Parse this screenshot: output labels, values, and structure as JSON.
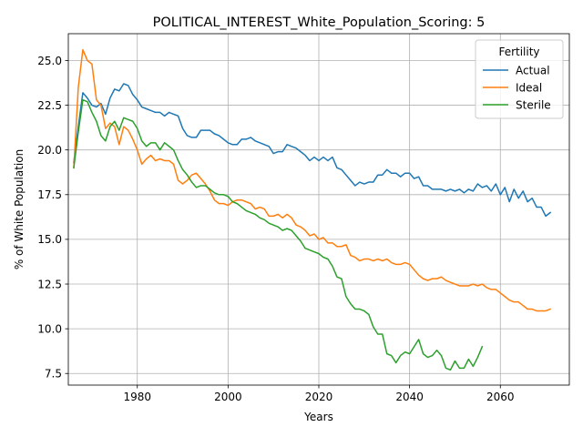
{
  "chart_data": {
    "type": "line",
    "title": "POLITICAL_INTEREST_White_Population_Scoring: 5",
    "xlabel": "Years",
    "ylabel": "% of White Population",
    "xlim": [
      1964.8,
      2075.2
    ],
    "ylim": [
      6.85,
      26.5
    ],
    "xticks": [
      1980,
      2000,
      2020,
      2040,
      2060
    ],
    "yticks": [
      7.5,
      10.0,
      12.5,
      15.0,
      17.5,
      20.0,
      22.5,
      25.0
    ],
    "ytick_labels": [
      "7.5",
      "10.0",
      "12.5",
      "15.0",
      "17.5",
      "20.0",
      "22.5",
      "25.0"
    ],
    "grid": true,
    "legend": {
      "title": "Fertility",
      "placement": "top-right"
    },
    "series": [
      {
        "name": "Actual",
        "color": "#1f77b4",
        "points": [
          [
            1966,
            19.3
          ],
          [
            1967,
            21.3
          ],
          [
            1968,
            23.2
          ],
          [
            1969,
            22.9
          ],
          [
            1970,
            22.5
          ],
          [
            1971,
            22.4
          ],
          [
            1972,
            22.6
          ],
          [
            1973,
            22.0
          ],
          [
            1974,
            22.9
          ],
          [
            1975,
            23.4
          ],
          [
            1976,
            23.3
          ],
          [
            1977,
            23.7
          ],
          [
            1978,
            23.6
          ],
          [
            1979,
            23.1
          ],
          [
            1980,
            22.8
          ],
          [
            1981,
            22.4
          ],
          [
            1982,
            22.3
          ],
          [
            1983,
            22.2
          ],
          [
            1984,
            22.1
          ],
          [
            1985,
            22.1
          ],
          [
            1986,
            21.9
          ],
          [
            1987,
            22.1
          ],
          [
            1988,
            22.0
          ],
          [
            1989,
            21.9
          ],
          [
            1990,
            21.2
          ],
          [
            1991,
            20.8
          ],
          [
            1992,
            20.7
          ],
          [
            1993,
            20.7
          ],
          [
            1994,
            21.1
          ],
          [
            1995,
            21.1
          ],
          [
            1996,
            21.1
          ],
          [
            1997,
            20.9
          ],
          [
            1998,
            20.8
          ],
          [
            1999,
            20.6
          ],
          [
            2000,
            20.4
          ],
          [
            2001,
            20.3
          ],
          [
            2002,
            20.3
          ],
          [
            2003,
            20.6
          ],
          [
            2004,
            20.6
          ],
          [
            2005,
            20.7
          ],
          [
            2006,
            20.5
          ],
          [
            2007,
            20.4
          ],
          [
            2008,
            20.3
          ],
          [
            2009,
            20.2
          ],
          [
            2010,
            19.8
          ],
          [
            2011,
            19.9
          ],
          [
            2012,
            19.9
          ],
          [
            2013,
            20.3
          ],
          [
            2014,
            20.2
          ],
          [
            2015,
            20.1
          ],
          [
            2016,
            19.9
          ],
          [
            2017,
            19.7
          ],
          [
            2018,
            19.4
          ],
          [
            2019,
            19.6
          ],
          [
            2020,
            19.4
          ],
          [
            2021,
            19.6
          ],
          [
            2022,
            19.4
          ],
          [
            2023,
            19.6
          ],
          [
            2024,
            19.0
          ],
          [
            2025,
            18.9
          ],
          [
            2026,
            18.6
          ],
          [
            2027,
            18.3
          ],
          [
            2028,
            18.0
          ],
          [
            2029,
            18.2
          ],
          [
            2030,
            18.1
          ],
          [
            2031,
            18.2
          ],
          [
            2032,
            18.2
          ],
          [
            2033,
            18.6
          ],
          [
            2034,
            18.6
          ],
          [
            2035,
            18.9
          ],
          [
            2036,
            18.7
          ],
          [
            2037,
            18.7
          ],
          [
            2038,
            18.5
          ],
          [
            2039,
            18.7
          ],
          [
            2040,
            18.7
          ],
          [
            2041,
            18.4
          ],
          [
            2042,
            18.5
          ],
          [
            2043,
            18.0
          ],
          [
            2044,
            18.0
          ],
          [
            2045,
            17.8
          ],
          [
            2046,
            17.8
          ],
          [
            2047,
            17.8
          ],
          [
            2048,
            17.7
          ],
          [
            2049,
            17.8
          ],
          [
            2050,
            17.7
          ],
          [
            2051,
            17.8
          ],
          [
            2052,
            17.6
          ],
          [
            2053,
            17.8
          ],
          [
            2054,
            17.7
          ],
          [
            2055,
            18.1
          ],
          [
            2056,
            17.9
          ],
          [
            2057,
            18.0
          ],
          [
            2058,
            17.7
          ],
          [
            2059,
            18.1
          ],
          [
            2060,
            17.5
          ],
          [
            2061,
            17.9
          ],
          [
            2062,
            17.1
          ],
          [
            2063,
            17.8
          ],
          [
            2064,
            17.3
          ],
          [
            2065,
            17.7
          ],
          [
            2066,
            17.1
          ],
          [
            2067,
            17.3
          ],
          [
            2068,
            16.8
          ],
          [
            2069,
            16.8
          ],
          [
            2070,
            16.3
          ],
          [
            2071,
            16.5
          ]
        ]
      },
      {
        "name": "Ideal",
        "color": "#ff7f0e",
        "points": [
          [
            1966,
            19.0
          ],
          [
            1967,
            23.5
          ],
          [
            1968,
            25.6
          ],
          [
            1969,
            25.0
          ],
          [
            1970,
            24.8
          ],
          [
            1971,
            22.8
          ],
          [
            1972,
            22.5
          ],
          [
            1973,
            21.2
          ],
          [
            1974,
            21.5
          ],
          [
            1975,
            21.3
          ],
          [
            1976,
            20.3
          ],
          [
            1977,
            21.3
          ],
          [
            1978,
            21.1
          ],
          [
            1979,
            20.6
          ],
          [
            1980,
            20.0
          ],
          [
            1981,
            19.2
          ],
          [
            1982,
            19.5
          ],
          [
            1983,
            19.7
          ],
          [
            1984,
            19.4
          ],
          [
            1985,
            19.5
          ],
          [
            1986,
            19.4
          ],
          [
            1987,
            19.4
          ],
          [
            1988,
            19.2
          ],
          [
            1989,
            18.3
          ],
          [
            1990,
            18.1
          ],
          [
            1991,
            18.3
          ],
          [
            1992,
            18.6
          ],
          [
            1993,
            18.7
          ],
          [
            1994,
            18.4
          ],
          [
            1995,
            18.1
          ],
          [
            1996,
            17.7
          ],
          [
            1997,
            17.2
          ],
          [
            1998,
            17.0
          ],
          [
            1999,
            17.0
          ],
          [
            2000,
            16.9
          ],
          [
            2001,
            17.1
          ],
          [
            2002,
            17.2
          ],
          [
            2003,
            17.2
          ],
          [
            2004,
            17.1
          ],
          [
            2005,
            17.0
          ],
          [
            2006,
            16.7
          ],
          [
            2007,
            16.8
          ],
          [
            2008,
            16.7
          ],
          [
            2009,
            16.3
          ],
          [
            2010,
            16.3
          ],
          [
            2011,
            16.4
          ],
          [
            2012,
            16.2
          ],
          [
            2013,
            16.4
          ],
          [
            2014,
            16.2
          ],
          [
            2015,
            15.8
          ],
          [
            2016,
            15.7
          ],
          [
            2017,
            15.5
          ],
          [
            2018,
            15.2
          ],
          [
            2019,
            15.3
          ],
          [
            2020,
            15.0
          ],
          [
            2021,
            15.1
          ],
          [
            2022,
            14.8
          ],
          [
            2023,
            14.8
          ],
          [
            2024,
            14.6
          ],
          [
            2025,
            14.6
          ],
          [
            2026,
            14.7
          ],
          [
            2027,
            14.1
          ],
          [
            2028,
            14.0
          ],
          [
            2029,
            13.8
          ],
          [
            2030,
            13.9
          ],
          [
            2031,
            13.9
          ],
          [
            2032,
            13.8
          ],
          [
            2033,
            13.9
          ],
          [
            2034,
            13.8
          ],
          [
            2035,
            13.9
          ],
          [
            2036,
            13.7
          ],
          [
            2037,
            13.6
          ],
          [
            2038,
            13.6
          ],
          [
            2039,
            13.7
          ],
          [
            2040,
            13.6
          ],
          [
            2041,
            13.3
          ],
          [
            2042,
            13.0
          ],
          [
            2043,
            12.8
          ],
          [
            2044,
            12.7
          ],
          [
            2045,
            12.8
          ],
          [
            2046,
            12.8
          ],
          [
            2047,
            12.9
          ],
          [
            2048,
            12.7
          ],
          [
            2049,
            12.6
          ],
          [
            2050,
            12.5
          ],
          [
            2051,
            12.4
          ],
          [
            2052,
            12.4
          ],
          [
            2053,
            12.4
          ],
          [
            2054,
            12.5
          ],
          [
            2055,
            12.4
          ],
          [
            2056,
            12.5
          ],
          [
            2057,
            12.3
          ],
          [
            2058,
            12.2
          ],
          [
            2059,
            12.2
          ],
          [
            2060,
            12.0
          ],
          [
            2061,
            11.8
          ],
          [
            2062,
            11.6
          ],
          [
            2063,
            11.5
          ],
          [
            2064,
            11.5
          ],
          [
            2065,
            11.3
          ],
          [
            2066,
            11.1
          ],
          [
            2067,
            11.1
          ],
          [
            2068,
            11.0
          ],
          [
            2069,
            11.0
          ],
          [
            2070,
            11.0
          ],
          [
            2071,
            11.1
          ]
        ]
      },
      {
        "name": "Sterile",
        "color": "#2ca02c",
        "points": [
          [
            1966,
            19.0
          ],
          [
            1967,
            21.0
          ],
          [
            1968,
            22.8
          ],
          [
            1969,
            22.7
          ],
          [
            1970,
            22.1
          ],
          [
            1971,
            21.6
          ],
          [
            1972,
            20.8
          ],
          [
            1973,
            20.5
          ],
          [
            1974,
            21.3
          ],
          [
            1975,
            21.6
          ],
          [
            1976,
            21.1
          ],
          [
            1977,
            21.8
          ],
          [
            1978,
            21.7
          ],
          [
            1979,
            21.6
          ],
          [
            1980,
            21.2
          ],
          [
            1981,
            20.5
          ],
          [
            1982,
            20.2
          ],
          [
            1983,
            20.4
          ],
          [
            1984,
            20.4
          ],
          [
            1985,
            20.0
          ],
          [
            1986,
            20.4
          ],
          [
            1987,
            20.2
          ],
          [
            1988,
            20.0
          ],
          [
            1989,
            19.4
          ],
          [
            1990,
            18.9
          ],
          [
            1991,
            18.6
          ],
          [
            1992,
            18.2
          ],
          [
            1993,
            17.9
          ],
          [
            1994,
            18.0
          ],
          [
            1995,
            18.0
          ],
          [
            1996,
            17.8
          ],
          [
            1997,
            17.6
          ],
          [
            1998,
            17.5
          ],
          [
            1999,
            17.5
          ],
          [
            2000,
            17.4
          ],
          [
            2001,
            17.1
          ],
          [
            2002,
            17.0
          ],
          [
            2003,
            16.8
          ],
          [
            2004,
            16.6
          ],
          [
            2005,
            16.5
          ],
          [
            2006,
            16.4
          ],
          [
            2007,
            16.2
          ],
          [
            2008,
            16.1
          ],
          [
            2009,
            15.9
          ],
          [
            2010,
            15.8
          ],
          [
            2011,
            15.7
          ],
          [
            2012,
            15.5
          ],
          [
            2013,
            15.6
          ],
          [
            2014,
            15.5
          ],
          [
            2015,
            15.2
          ],
          [
            2016,
            14.9
          ],
          [
            2017,
            14.5
          ],
          [
            2018,
            14.4
          ],
          [
            2019,
            14.3
          ],
          [
            2020,
            14.2
          ],
          [
            2021,
            14.0
          ],
          [
            2022,
            13.9
          ],
          [
            2023,
            13.5
          ],
          [
            2024,
            12.9
          ],
          [
            2025,
            12.8
          ],
          [
            2026,
            11.8
          ],
          [
            2027,
            11.4
          ],
          [
            2028,
            11.1
          ],
          [
            2029,
            11.1
          ],
          [
            2030,
            11.0
          ],
          [
            2031,
            10.8
          ],
          [
            2032,
            10.1
          ],
          [
            2033,
            9.7
          ],
          [
            2034,
            9.7
          ],
          [
            2035,
            8.6
          ],
          [
            2036,
            8.5
          ],
          [
            2037,
            8.1
          ],
          [
            2038,
            8.5
          ],
          [
            2039,
            8.7
          ],
          [
            2040,
            8.6
          ],
          [
            2041,
            9.0
          ],
          [
            2042,
            9.4
          ],
          [
            2043,
            8.6
          ],
          [
            2044,
            8.4
          ],
          [
            2045,
            8.5
          ],
          [
            2046,
            8.8
          ],
          [
            2047,
            8.5
          ],
          [
            2048,
            7.8
          ],
          [
            2049,
            7.7
          ],
          [
            2050,
            8.2
          ],
          [
            2051,
            7.8
          ],
          [
            2052,
            7.8
          ],
          [
            2053,
            8.3
          ],
          [
            2054,
            7.9
          ],
          [
            2055,
            8.4
          ],
          [
            2056,
            9.0
          ]
        ]
      }
    ]
  }
}
